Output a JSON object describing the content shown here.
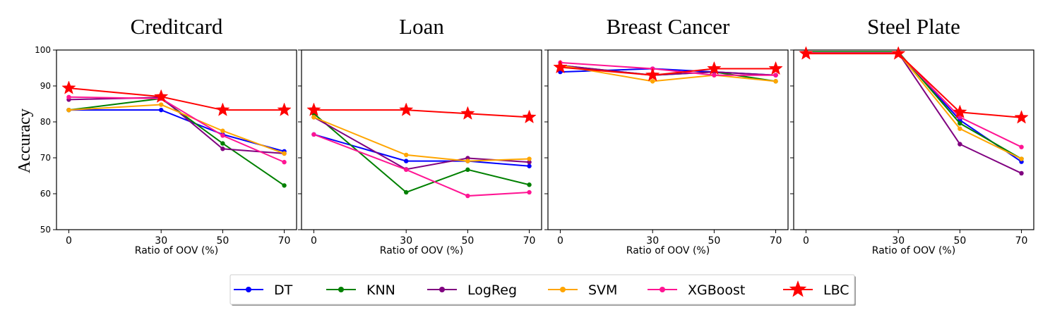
{
  "chart_data": {
    "type": "line",
    "ylabel": "Accuracy",
    "ylim": [
      50,
      100
    ],
    "yticks": [
      50,
      60,
      70,
      80,
      90,
      100
    ],
    "x": [
      0,
      30,
      50,
      70
    ],
    "xticks": [
      "0",
      "30",
      "50",
      "70"
    ],
    "legend_position": "bottom-center",
    "series_styles": [
      {
        "name": "DT",
        "color": "#0000ff",
        "marker": "circle"
      },
      {
        "name": "KNN",
        "color": "#008000",
        "marker": "circle"
      },
      {
        "name": "LogReg",
        "color": "#800080",
        "marker": "circle"
      },
      {
        "name": "SVM",
        "color": "#ffa500",
        "marker": "circle"
      },
      {
        "name": "XGBoost",
        "color": "#ff1493",
        "marker": "circle"
      },
      {
        "name": "LBC",
        "color": "#ff0000",
        "marker": "star"
      }
    ],
    "panels": [
      {
        "title": "Creditcard",
        "xlabel": "Ratio of OOV (%)",
        "series": [
          {
            "name": "DT",
            "values": [
              83.3,
              83.3,
              76.5,
              71.8
            ]
          },
          {
            "name": "KNN",
            "values": [
              83.3,
              86.5,
              74.0,
              62.3
            ]
          },
          {
            "name": "LogReg",
            "values": [
              86.2,
              86.8,
              72.5,
              71.2
            ]
          },
          {
            "name": "SVM",
            "values": [
              83.3,
              84.8,
              77.5,
              71.2
            ]
          },
          {
            "name": "XGBoost",
            "values": [
              86.9,
              86.5,
              76.2,
              68.8
            ]
          },
          {
            "name": "LBC",
            "values": [
              89.4,
              87.0,
              83.3,
              83.3
            ]
          }
        ]
      },
      {
        "title": "Loan",
        "xlabel": "Ratio of OOV (%)",
        "series": [
          {
            "name": "DT",
            "values": [
              76.5,
              69.1,
              69.1,
              67.7
            ]
          },
          {
            "name": "KNN",
            "values": [
              82.3,
              60.4,
              66.7,
              62.5
            ]
          },
          {
            "name": "LogReg",
            "values": [
              81.3,
              66.8,
              69.9,
              68.8
            ]
          },
          {
            "name": "SVM",
            "values": [
              81.3,
              70.8,
              69.1,
              69.7
            ]
          },
          {
            "name": "XGBoost",
            "values": [
              76.5,
              66.7,
              59.4,
              60.4
            ]
          },
          {
            "name": "LBC",
            "values": [
              83.3,
              83.3,
              82.3,
              81.3
            ]
          }
        ]
      },
      {
        "title": "Breast Cancer",
        "xlabel": "Ratio of OOV (%)",
        "series": [
          {
            "name": "DT",
            "values": [
              93.9,
              94.8,
              93.9,
              93.0
            ]
          },
          {
            "name": "KNN",
            "values": [
              95.7,
              93.0,
              93.9,
              91.3
            ]
          },
          {
            "name": "LogReg",
            "values": [
              95.7,
              93.0,
              93.9,
              93.0
            ]
          },
          {
            "name": "SVM",
            "values": [
              95.7,
              91.3,
              93.0,
              91.3
            ]
          },
          {
            "name": "XGBoost",
            "values": [
              96.5,
              94.8,
              93.0,
              93.0
            ]
          },
          {
            "name": "LBC",
            "values": [
              95.2,
              93.0,
              94.8,
              94.8
            ]
          }
        ]
      },
      {
        "title": "Steel Plate",
        "xlabel": "Ratio of OOV (%)",
        "series": [
          {
            "name": "DT",
            "values": [
              99.2,
              99.2,
              80.5,
              68.9
            ]
          },
          {
            "name": "KNN",
            "values": [
              99.5,
              99.5,
              79.6,
              69.7
            ]
          },
          {
            "name": "LogReg",
            "values": [
              99.2,
              99.2,
              73.8,
              65.7
            ]
          },
          {
            "name": "SVM",
            "values": [
              99.2,
              99.2,
              78.1,
              69.7
            ]
          },
          {
            "name": "XGBoost",
            "values": [
              99.2,
              99.2,
              81.3,
              73.0
            ]
          },
          {
            "name": "LBC",
            "values": [
              99.0,
              99.0,
              82.7,
              81.2
            ]
          }
        ]
      }
    ]
  }
}
